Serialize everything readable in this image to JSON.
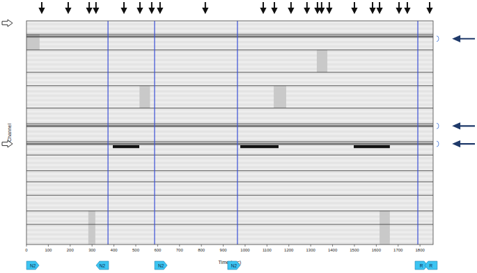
{
  "chart_data": {
    "type": "raster",
    "x_label": "Time (sec)",
    "y_label": "Channel",
    "xlim": [
      0,
      1860
    ],
    "xticks": [
      0,
      100,
      200,
      300,
      400,
      500,
      600,
      700,
      800,
      900,
      1000,
      1100,
      1200,
      1300,
      1400,
      1500,
      1600,
      1700,
      1800
    ],
    "ylim": [
      0,
      100
    ],
    "tick_labels": "x",
    "channel_group_boundaries": [
      6,
      13,
      23,
      29,
      39,
      46,
      54,
      60,
      67,
      72,
      78,
      85,
      91
    ],
    "stage_changes": {
      "color": "#3a4fd6",
      "values": [
        373,
        586,
        965,
        1790
      ]
    },
    "event_markers": [
      70,
      191,
      287,
      318,
      446,
      519,
      573,
      611,
      818,
      1083,
      1134,
      1210,
      1283,
      1331,
      1350,
      1385,
      1500,
      1583,
      1615,
      1704,
      1742,
      1844
    ],
    "stage_labels": {
      "color": "#3cc4f2",
      "items": [
        {
          "label": "N2",
          "time": 29,
          "direction": "right"
        },
        {
          "label": "N2",
          "time": 347,
          "direction": "left"
        },
        {
          "label": "N2",
          "time": 615,
          "direction": "right"
        },
        {
          "label": "N2",
          "time": 949,
          "direction": "right"
        },
        {
          "label": "R",
          "time": 1806,
          "direction": "right"
        },
        {
          "label": "R",
          "time": 1850,
          "direction": "left"
        }
      ]
    },
    "shaded_periods": [
      {
        "start": 517,
        "end": 565,
        "channel_start": 29,
        "channel_end": 39
      },
      {
        "start": 1131,
        "end": 1188,
        "channel_start": 29,
        "channel_end": 39
      },
      {
        "start": 1328,
        "end": 1376,
        "channel_start": 13,
        "channel_end": 23
      },
      {
        "start": 283,
        "end": 315,
        "channel_start": 85,
        "channel_end": 100
      },
      {
        "start": 1615,
        "end": 1662,
        "channel_start": 85,
        "channel_end": 100
      },
      {
        "start": 0,
        "end": 60,
        "channel_start": 6,
        "channel_end": 13
      }
    ],
    "bursts": {
      "channel": 55,
      "periods": [
        [
          395,
          516
        ],
        [
          978,
          1153
        ],
        [
          1497,
          1662
        ]
      ]
    },
    "active_channels": [
      7,
      47,
      55
    ],
    "highlighted_channels": [
      8,
      47,
      55
    ],
    "reference_channels": [
      1,
      55
    ]
  }
}
